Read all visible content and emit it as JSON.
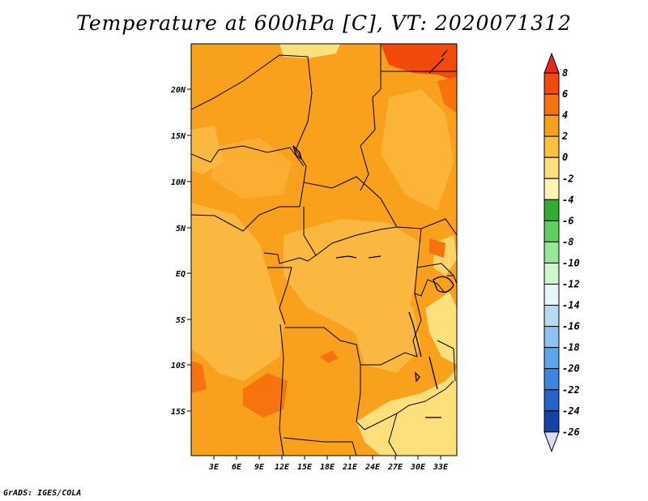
{
  "title": "Temperature at 600hPa [C], VT: 2020071312",
  "credit": "GrADS: IGES/COLA",
  "map": {
    "lon_labels": [
      "3E",
      "6E",
      "9E",
      "12E",
      "15E",
      "18E",
      "21E",
      "24E",
      "27E",
      "30E",
      "33E"
    ],
    "lat_labels": [
      "20N",
      "15N",
      "10N",
      "5N",
      "EQ",
      "5S",
      "10S",
      "15S"
    ]
  },
  "colorbar": {
    "levels": [
      "8",
      "6",
      "4",
      "2",
      "0",
      "-2",
      "-4",
      "-6",
      "-8",
      "-10",
      "-12",
      "-14",
      "-16",
      "-18",
      "-20",
      "-22",
      "-24",
      "-26"
    ],
    "colors": [
      "#e8281c",
      "#f24a0a",
      "#f7730d",
      "#f9a11c",
      "#fbc040",
      "#fde07c",
      "#fff5b0",
      "#2fae2f",
      "#5cd05c",
      "#95e895",
      "#cdf7cd",
      "#e6f5fa",
      "#b4dcf5",
      "#8cc3f0",
      "#5ea6ea",
      "#3d86e0",
      "#2165cc",
      "#1243a6",
      "#0a207c",
      "#dcdcf8"
    ]
  }
}
